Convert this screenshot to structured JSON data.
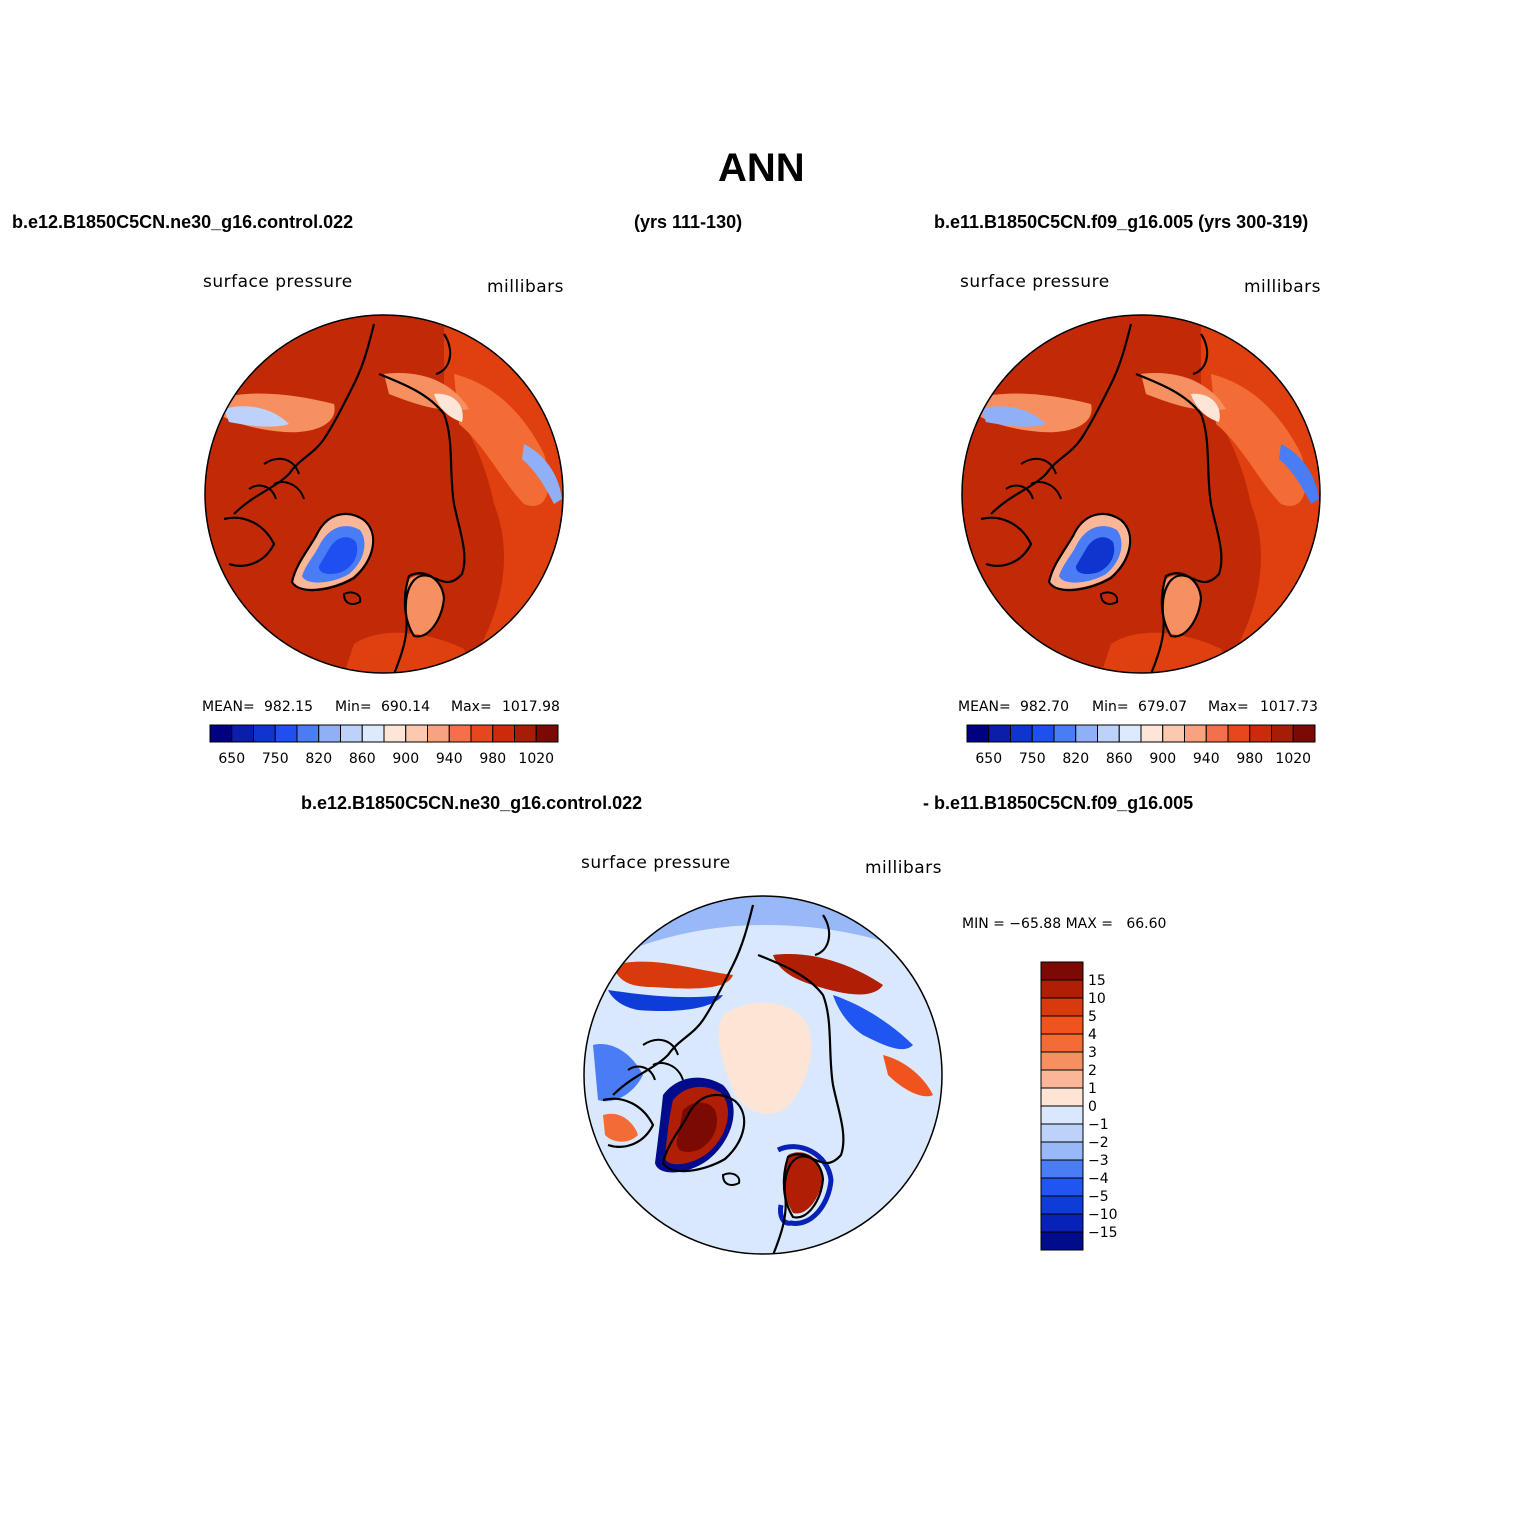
{
  "title": "ANN",
  "panel1": {
    "case_name": "b.e12.B1850C5CN.ne30_g16.control.022",
    "years": "(yrs 111-130)",
    "variable": "surface pressure",
    "units": "millibars",
    "mean_label": "MEAN=",
    "mean": "982.15",
    "min_label": "Min=",
    "min": "690.14",
    "max_label": "Max=",
    "max": "1017.98"
  },
  "panel2": {
    "case_name": "b.e11.B1850C5CN.f09_g16.005 (yrs 300-319)",
    "variable": "surface pressure",
    "units": "millibars",
    "mean_label": "MEAN=",
    "mean": "982.70",
    "min_label": "Min=",
    "min": "679.07",
    "max_label": "Max=",
    "max": "1017.73"
  },
  "panel3": {
    "case_a": "b.e12.B1850C5CN.ne30_g16.control.022",
    "case_b": "- b.e11.B1850C5CN.f09_g16.005",
    "variable": "surface pressure",
    "units": "millibars",
    "minmax": "MIN = −65.88 MAX =   66.60"
  },
  "abs_colorbar": {
    "colors": [
      "#000080",
      "#0a1dab",
      "#0e35cf",
      "#1f4ff0",
      "#4a7cf5",
      "#8fb0f7",
      "#bcd2fa",
      "#ddeafd",
      "#fde6d8",
      "#fcc8b0",
      "#f9a27f",
      "#f3704b",
      "#e8461c",
      "#cc2a08",
      "#a71c04",
      "#7a0a03"
    ],
    "tick_labels": [
      "650",
      "750",
      "820",
      "860",
      "900",
      "940",
      "980",
      "1020"
    ]
  },
  "diff_colorbar": {
    "colors": [
      "#7a0a03",
      "#b01e05",
      "#d93a0b",
      "#f0531d",
      "#f36c36",
      "#f69060",
      "#fbb697",
      "#fde5d6",
      "#d9e8fc",
      "#bcd2fa",
      "#98b8f7",
      "#4a7cf5",
      "#1f55f0",
      "#0e3cd9",
      "#0822b8",
      "#000c8c"
    ],
    "tick_labels": [
      "15",
      "10",
      "5",
      "4",
      "3",
      "2",
      "1",
      "0",
      "−1",
      "−2",
      "−3",
      "−4",
      "−5",
      "−10",
      "−15"
    ]
  }
}
